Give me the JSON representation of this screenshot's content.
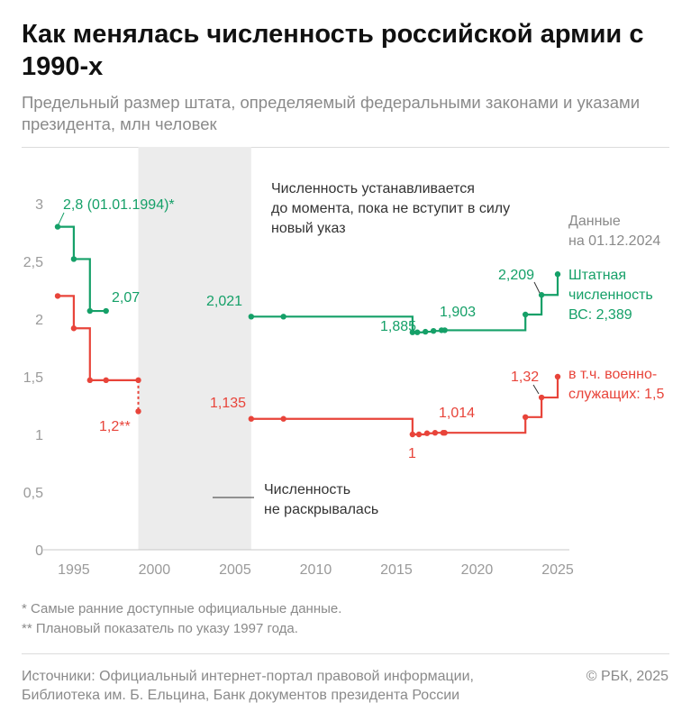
{
  "header": {
    "title": "Как менялась численность российской армии с 1990-х",
    "subtitle": "Предельный размер штата, определяемый федеральными законами и указами президента, млн человек"
  },
  "chart_data": {
    "type": "line",
    "title": "Как менялась численность российской армии с 1990-х",
    "subtitle": "Предельный размер штата, определяемый федеральными законами и указами президента, млн человек",
    "xlabel": "",
    "ylabel": "млн человек",
    "xlim": [
      1994,
      2025
    ],
    "ylim": [
      0,
      3
    ],
    "x_ticks": [
      1995,
      2000,
      2005,
      2010,
      2015,
      2020,
      2025
    ],
    "x_tick_labels": [
      "1995",
      "2000",
      "2005",
      "2010",
      "2015",
      "2020",
      "2025"
    ],
    "y_ticks": [
      0,
      0.5,
      1,
      1.5,
      2,
      2.5,
      3
    ],
    "y_tick_labels": [
      "0",
      "0,5",
      "1",
      "1,5",
      "2",
      "2,5",
      "3"
    ],
    "step": true,
    "colors": {
      "total": "#15a068",
      "military": "#e8443a",
      "shade": "#ececec",
      "axis": "#c8c8c8"
    },
    "series": [
      {
        "name": "Штатная численность ВС",
        "color": "#15a068",
        "segments": [
          [
            [
              1994,
              2.8
            ],
            [
              1995,
              2.52
            ],
            [
              1996,
              2.07
            ],
            [
              1997,
              2.07
            ]
          ],
          [
            [
              2006,
              2.021
            ],
            [
              2008,
              2.021
            ],
            [
              2016,
              1.885
            ],
            [
              2016.3,
              1.885
            ],
            [
              2016.8,
              1.89
            ],
            [
              2017.3,
              1.897
            ],
            [
              2017.8,
              1.903
            ],
            [
              2018,
              1.903
            ],
            [
              2023,
              2.039
            ],
            [
              2024,
              2.209
            ],
            [
              2025,
              2.389
            ]
          ]
        ]
      },
      {
        "name": "в т.ч. военнослужащих",
        "color": "#e8443a",
        "segments": [
          [
            [
              1994,
              2.2
            ],
            [
              1995,
              1.92
            ],
            [
              1996,
              1.47
            ],
            [
              1997,
              1.47
            ],
            [
              1999,
              1.47
            ]
          ],
          [
            [
              2006,
              1.135
            ],
            [
              2008,
              1.135
            ],
            [
              2016,
              1.0
            ],
            [
              2016.4,
              1.0
            ],
            [
              2016.9,
              1.01
            ],
            [
              2017.4,
              1.014
            ],
            [
              2017.9,
              1.014
            ],
            [
              2018,
              1.014
            ],
            [
              2023,
              1.15
            ],
            [
              2024,
              1.32
            ],
            [
              2025,
              1.5
            ]
          ]
        ],
        "planned": [
          [
            1999,
            1.47
          ],
          [
            1999,
            1.2
          ]
        ]
      }
    ],
    "shaded_range": [
      1999,
      2006
    ],
    "legend": [
      {
        "label": "Штатная численность ВС: 2,389",
        "color": "#15a068",
        "position": "right"
      },
      {
        "label": "в т.ч. военнослужащих: 1,5",
        "color": "#e8443a",
        "position": "right"
      }
    ],
    "data_labels": {
      "g_start": "2,8 (01.01.1994)*",
      "g_2_07": "2,07",
      "g_2_021": "2,021",
      "g_1_885": "1,885",
      "g_1_903": "1,903",
      "g_2_209": "2,209",
      "r_1_2": "1,2**",
      "r_1_135": "1,135",
      "r_1": "1",
      "r_1_014": "1,014",
      "r_1_32": "1,32"
    },
    "annotations": {
      "note_line1": "Численность устанавливается",
      "note_line2": "до момента, пока не вступит в силу",
      "note_line3": "новый указ",
      "date_line1": "Данные",
      "date_line2": "на 01.12.2024",
      "shade_line1": "Численность",
      "shade_line2": "не раскрывалась",
      "legend_green_1": "Штатная",
      "legend_green_2": "численность",
      "legend_green_3": "ВС: 2,389",
      "legend_red_1": "в т.ч. военно-",
      "legend_red_2": "служащих: 1,5"
    }
  },
  "footnotes": {
    "f1": "* Самые ранние доступные официальные данные.",
    "f2": "** Плановый показатель по указу 1997 года."
  },
  "footer": {
    "sources": "Источники: Официальный интернет-портал правовой информации, Библиотека им. Б. Ельцина, Банк документов президента России",
    "copyright": "© РБК, 2025"
  }
}
